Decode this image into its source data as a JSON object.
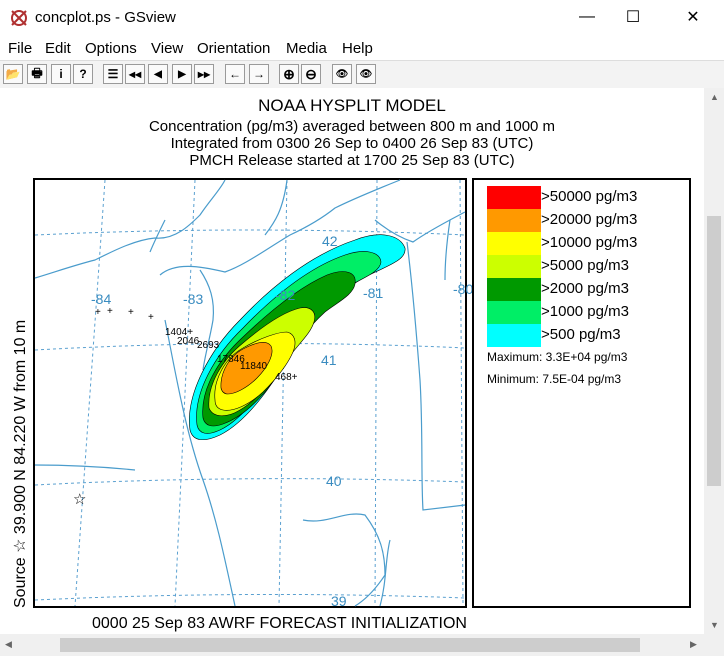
{
  "window": {
    "title": "concplot.ps - GSview",
    "minimize": "—",
    "maximize": "☐",
    "close": "✕"
  },
  "menu": [
    "File",
    "Edit",
    "Options",
    "View",
    "Orientation",
    "Media",
    "Help"
  ],
  "toolbar": [
    {
      "name": "open-icon",
      "glyph": "📂"
    },
    {
      "name": "print-icon",
      "glyph": "🖶"
    },
    {
      "name": "info-icon",
      "glyph": "i"
    },
    {
      "name": "help-icon",
      "glyph": "?"
    },
    {
      "name": "goto-page-icon",
      "glyph": "☰"
    },
    {
      "name": "first-page-icon",
      "glyph": "◀◀"
    },
    {
      "name": "prev-page-icon",
      "glyph": "◀"
    },
    {
      "name": "next-page-icon",
      "glyph": "▶"
    },
    {
      "name": "last-page-icon",
      "glyph": "▶▶"
    },
    {
      "name": "back-icon",
      "glyph": "←"
    },
    {
      "name": "forward-icon",
      "glyph": "→"
    },
    {
      "name": "zoom-in-icon",
      "glyph": "⊕"
    },
    {
      "name": "zoom-out-icon",
      "glyph": "⊖"
    },
    {
      "name": "find-icon",
      "glyph": "👁"
    },
    {
      "name": "find-next-icon",
      "glyph": "👁"
    }
  ],
  "plot": {
    "title": "NOAA HYSPLIT MODEL",
    "line1": "Concentration  (pg/m3) averaged between   800 m and  1000 m",
    "line2": "Integrated from 0300 26 Sep to 0400 26 Sep 83 (UTC)",
    "line3": "PMCH Release started at 1700 25 Sep 83 (UTC)",
    "side_label": "Source ☆ 39.900  N  84.220  W   from  10 m",
    "bottom_label": "0000 25 Sep 83 AWRF FORECAST INITIALIZATION",
    "lon_labels": [
      "-84",
      "-83",
      "-82",
      "-81",
      "-80"
    ],
    "lat_labels": [
      "42",
      "41",
      "40",
      "39"
    ],
    "station_values": [
      "1404+",
      "2046",
      "2693",
      "17846",
      "11840",
      "468+"
    ],
    "source_marker": "☆"
  },
  "legend": {
    "items": [
      {
        "label": ">50000 pg/m3",
        "color": "#ff0000"
      },
      {
        "label": ">20000 pg/m3",
        "color": "#ff9900"
      },
      {
        "label": ">10000 pg/m3",
        "color": "#ffff00"
      },
      {
        "label": ">5000 pg/m3",
        "color": "#ccff00"
      },
      {
        "label": ">2000 pg/m3",
        "color": "#009900"
      },
      {
        "label": ">1000 pg/m3",
        "color": "#00ee66"
      },
      {
        "label": ">500 pg/m3",
        "color": "#00ffff"
      }
    ],
    "maximum": "Maximum: 3.3E+04 pg/m3",
    "minimum": "Minimum: 7.5E-04 pg/m3"
  }
}
